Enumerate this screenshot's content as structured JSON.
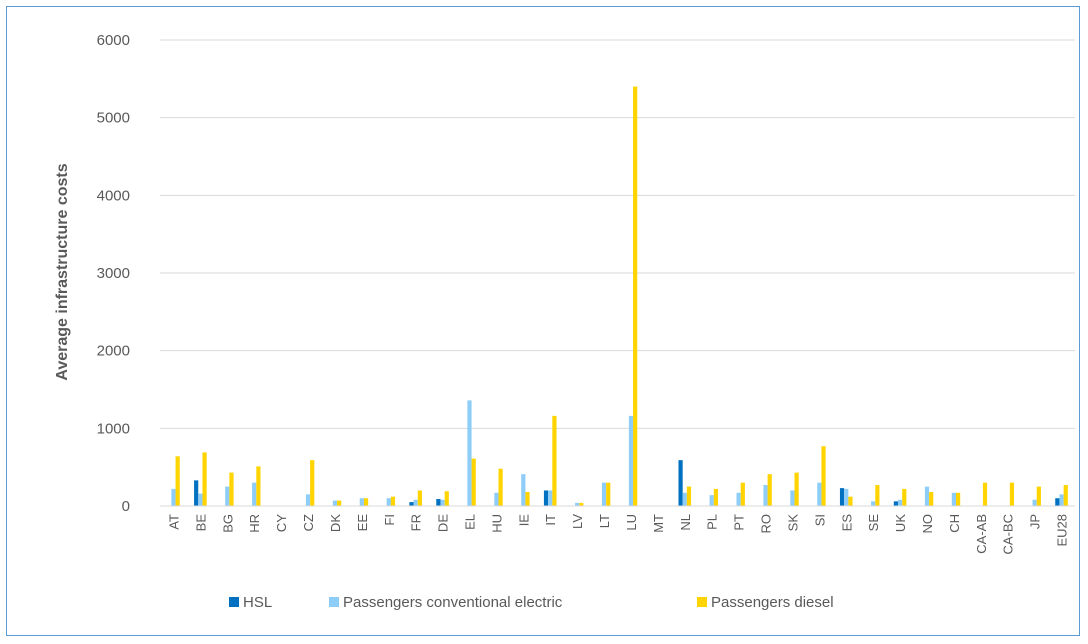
{
  "chart_data": {
    "type": "bar",
    "ylabel": "Average infrastructure costs",
    "ylim": [
      0,
      6000
    ],
    "yticks": [
      0,
      1000,
      2000,
      3000,
      4000,
      5000,
      6000
    ],
    "grid": true,
    "legend_position": "bottom",
    "categories": [
      "AT",
      "BE",
      "BG",
      "HR",
      "CY",
      "CZ",
      "DK",
      "EE",
      "FI",
      "FR",
      "DE",
      "EL",
      "HU",
      "IE",
      "IT",
      "LV",
      "LT",
      "LU",
      "MT",
      "NL",
      "PL",
      "PT",
      "RO",
      "SK",
      "SI",
      "ES",
      "SE",
      "UK",
      "NO",
      "CH",
      "CA-AB",
      "CA-BC",
      "JP",
      "EU28"
    ],
    "series": [
      {
        "name": "HSL",
        "color": "#0070c0",
        "values": [
          0,
          330,
          0,
          0,
          0,
          0,
          0,
          0,
          0,
          50,
          90,
          0,
          0,
          0,
          200,
          0,
          0,
          0,
          0,
          590,
          0,
          0,
          0,
          0,
          0,
          230,
          0,
          60,
          0,
          0,
          0,
          0,
          0,
          100
        ]
      },
      {
        "name": "Passengers conventional electric",
        "color": "#8ecdf7",
        "values": [
          220,
          160,
          250,
          300,
          0,
          150,
          70,
          100,
          100,
          80,
          80,
          1360,
          170,
          410,
          200,
          40,
          300,
          1160,
          0,
          170,
          140,
          170,
          270,
          200,
          300,
          220,
          60,
          80,
          250,
          170,
          0,
          0,
          80,
          150
        ]
      },
      {
        "name": "Passengers diesel",
        "color": "#ffd400",
        "values": [
          640,
          690,
          430,
          510,
          0,
          590,
          70,
          100,
          120,
          200,
          190,
          610,
          480,
          180,
          1160,
          40,
          300,
          5400,
          0,
          250,
          220,
          300,
          410,
          430,
          770,
          120,
          270,
          220,
          180,
          170,
          300,
          300,
          250,
          270
        ]
      }
    ]
  }
}
